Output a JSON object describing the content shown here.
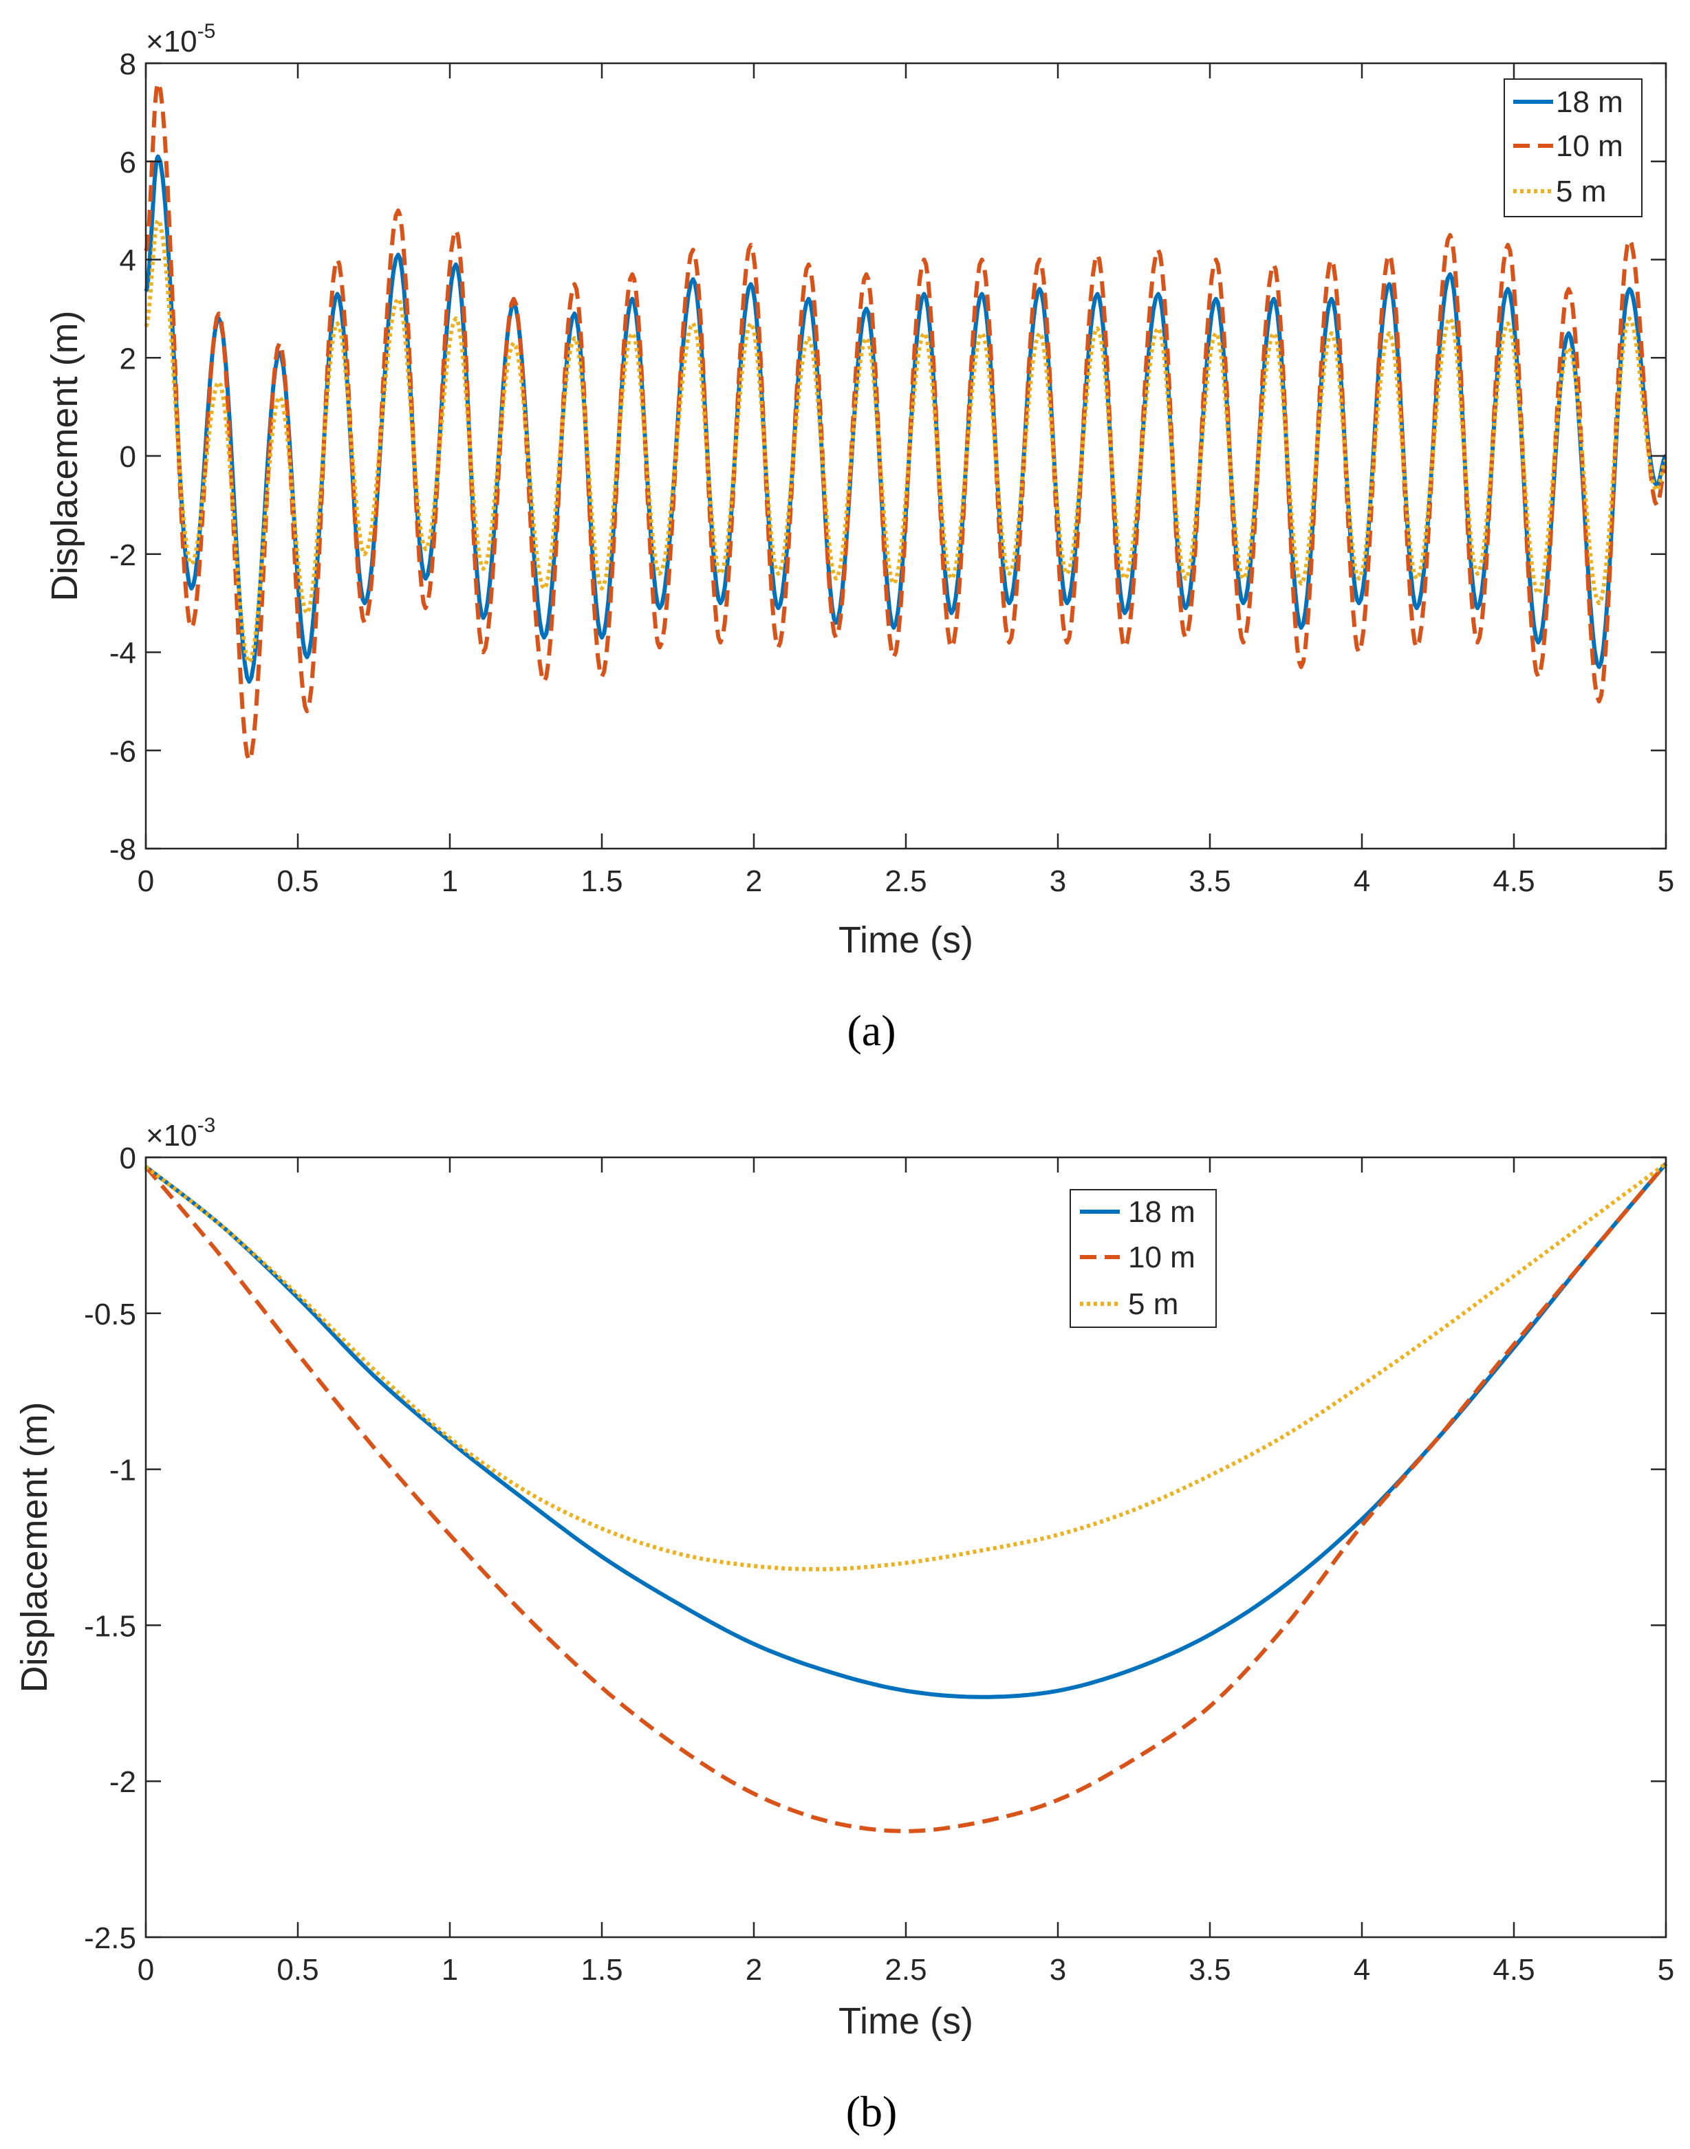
{
  "figure_labels": [
    "(a)",
    "(b)"
  ],
  "chart_data": [
    {
      "type": "line",
      "panel": "(a)",
      "xlabel": "Time (s)",
      "ylabel": "Displacement (m)",
      "y_exponent_label": "×10",
      "y_exponent_power": "-5",
      "xlim": [
        0,
        5
      ],
      "ylim": [
        -8,
        8
      ],
      "xticks": [
        "0",
        "0.5",
        "1",
        "1.5",
        "2",
        "2.5",
        "3",
        "3.5",
        "4",
        "4.5",
        "5"
      ],
      "yticks": [
        "-8",
        "-6",
        "-4",
        "-2",
        "0",
        "2",
        "4",
        "6",
        "8"
      ],
      "legend_position": "top-right",
      "series": [
        {
          "name": "18 m",
          "style": "solid",
          "color": "#0072BD",
          "peaks": [
            [
              0.04,
              6.1
            ],
            [
              0.15,
              -2.7
            ],
            [
              0.24,
              2.8
            ],
            [
              0.34,
              -4.6
            ],
            [
              0.44,
              2.1
            ],
            [
              0.53,
              -4.1
            ],
            [
              0.63,
              3.3
            ],
            [
              0.72,
              -3.0
            ],
            [
              0.83,
              4.1
            ],
            [
              0.92,
              -2.5
            ],
            [
              1.02,
              3.9
            ],
            [
              1.11,
              -3.3
            ],
            [
              1.21,
              3.1
            ],
            [
              1.31,
              -3.7
            ],
            [
              1.41,
              2.9
            ],
            [
              1.5,
              -3.7
            ],
            [
              1.6,
              3.2
            ],
            [
              1.69,
              -3.1
            ],
            [
              1.8,
              3.6
            ],
            [
              1.89,
              -3.0
            ],
            [
              1.99,
              3.5
            ],
            [
              2.08,
              -3.1
            ],
            [
              2.18,
              3.2
            ],
            [
              2.27,
              -3.4
            ],
            [
              2.37,
              3.0
            ],
            [
              2.46,
              -3.5
            ],
            [
              2.56,
              3.3
            ],
            [
              2.65,
              -3.2
            ],
            [
              2.75,
              3.3
            ],
            [
              2.84,
              -3.0
            ],
            [
              2.94,
              3.4
            ],
            [
              3.03,
              -3.0
            ],
            [
              3.13,
              3.3
            ],
            [
              3.22,
              -3.2
            ],
            [
              3.33,
              3.3
            ],
            [
              3.42,
              -3.1
            ],
            [
              3.52,
              3.2
            ],
            [
              3.61,
              -3.0
            ],
            [
              3.71,
              3.2
            ],
            [
              3.8,
              -3.5
            ],
            [
              3.9,
              3.2
            ],
            [
              3.99,
              -3.0
            ],
            [
              4.09,
              3.5
            ],
            [
              4.18,
              -3.1
            ],
            [
              4.29,
              3.7
            ],
            [
              4.38,
              -3.1
            ],
            [
              4.48,
              3.4
            ],
            [
              4.58,
              -3.8
            ],
            [
              4.68,
              2.5
            ],
            [
              4.78,
              -4.3
            ],
            [
              4.88,
              3.4
            ],
            [
              4.97,
              -0.6
            ],
            [
              5.0,
              0.0
            ]
          ]
        },
        {
          "name": "10 m",
          "style": "dashed",
          "color": "#D95319",
          "peaks": [
            [
              0.04,
              7.6
            ],
            [
              0.15,
              -3.5
            ],
            [
              0.24,
              2.9
            ],
            [
              0.34,
              -6.2
            ],
            [
              0.44,
              2.3
            ],
            [
              0.53,
              -5.2
            ],
            [
              0.63,
              4.0
            ],
            [
              0.72,
              -3.4
            ],
            [
              0.83,
              5.0
            ],
            [
              0.92,
              -3.1
            ],
            [
              1.02,
              4.6
            ],
            [
              1.11,
              -4.0
            ],
            [
              1.21,
              3.2
            ],
            [
              1.31,
              -4.6
            ],
            [
              1.41,
              3.5
            ],
            [
              1.5,
              -4.5
            ],
            [
              1.6,
              3.7
            ],
            [
              1.69,
              -3.9
            ],
            [
              1.8,
              4.2
            ],
            [
              1.89,
              -3.8
            ],
            [
              1.99,
              4.3
            ],
            [
              2.08,
              -3.9
            ],
            [
              2.18,
              3.9
            ],
            [
              2.27,
              -3.7
            ],
            [
              2.37,
              3.7
            ],
            [
              2.46,
              -4.1
            ],
            [
              2.56,
              4.0
            ],
            [
              2.65,
              -3.9
            ],
            [
              2.75,
              4.0
            ],
            [
              2.84,
              -3.8
            ],
            [
              2.94,
              4.0
            ],
            [
              3.03,
              -3.8
            ],
            [
              3.13,
              4.1
            ],
            [
              3.22,
              -3.9
            ],
            [
              3.33,
              4.2
            ],
            [
              3.42,
              -3.7
            ],
            [
              3.52,
              4.0
            ],
            [
              3.61,
              -3.8
            ],
            [
              3.71,
              3.9
            ],
            [
              3.8,
              -4.3
            ],
            [
              3.9,
              4.0
            ],
            [
              3.99,
              -4.0
            ],
            [
              4.09,
              4.1
            ],
            [
              4.18,
              -3.9
            ],
            [
              4.29,
              4.5
            ],
            [
              4.38,
              -3.8
            ],
            [
              4.48,
              4.3
            ],
            [
              4.58,
              -4.5
            ],
            [
              4.68,
              3.4
            ],
            [
              4.78,
              -5.0
            ],
            [
              4.88,
              4.4
            ],
            [
              4.97,
              -1.0
            ],
            [
              5.0,
              -0.2
            ]
          ]
        },
        {
          "name": "5 m",
          "style": "dotted",
          "color": "#EDB120",
          "peaks": [
            [
              0.04,
              4.8
            ],
            [
              0.15,
              -2.2
            ],
            [
              0.24,
              1.5
            ],
            [
              0.34,
              -4.2
            ],
            [
              0.44,
              1.2
            ],
            [
              0.53,
              -3.2
            ],
            [
              0.63,
              2.7
            ],
            [
              0.72,
              -2.0
            ],
            [
              0.83,
              3.2
            ],
            [
              0.92,
              -1.9
            ],
            [
              1.02,
              2.8
            ],
            [
              1.11,
              -2.3
            ],
            [
              1.21,
              2.3
            ],
            [
              1.31,
              -2.7
            ],
            [
              1.41,
              2.4
            ],
            [
              1.5,
              -2.7
            ],
            [
              1.6,
              2.5
            ],
            [
              1.69,
              -2.4
            ],
            [
              1.8,
              2.7
            ],
            [
              1.89,
              -2.4
            ],
            [
              1.99,
              2.7
            ],
            [
              2.08,
              -2.4
            ],
            [
              2.18,
              2.4
            ],
            [
              2.27,
              -2.5
            ],
            [
              2.37,
              2.4
            ],
            [
              2.46,
              -2.6
            ],
            [
              2.56,
              2.5
            ],
            [
              2.65,
              -2.5
            ],
            [
              2.75,
              2.5
            ],
            [
              2.84,
              -2.4
            ],
            [
              2.94,
              2.5
            ],
            [
              3.03,
              -2.4
            ],
            [
              3.13,
              2.6
            ],
            [
              3.22,
              -2.5
            ],
            [
              3.33,
              2.6
            ],
            [
              3.42,
              -2.5
            ],
            [
              3.52,
              2.5
            ],
            [
              3.61,
              -2.5
            ],
            [
              3.71,
              2.5
            ],
            [
              3.8,
              -2.6
            ],
            [
              3.9,
              2.5
            ],
            [
              3.99,
              -2.5
            ],
            [
              4.09,
              2.5
            ],
            [
              4.18,
              -2.5
            ],
            [
              4.29,
              2.8
            ],
            [
              4.38,
              -2.4
            ],
            [
              4.48,
              2.7
            ],
            [
              4.58,
              -2.8
            ],
            [
              4.68,
              2.2
            ],
            [
              4.78,
              -3.0
            ],
            [
              4.88,
              2.8
            ],
            [
              4.97,
              -0.7
            ],
            [
              5.0,
              -0.1
            ]
          ]
        }
      ]
    },
    {
      "type": "line",
      "panel": "(b)",
      "xlabel": "Time (s)",
      "ylabel": "Displacement (m)",
      "y_exponent_label": "×10",
      "y_exponent_power": "-3",
      "xlim": [
        0,
        5
      ],
      "ylim": [
        -2.5,
        0
      ],
      "xticks": [
        "0",
        "0.5",
        "1",
        "1.5",
        "2",
        "2.5",
        "3",
        "3.5",
        "4",
        "4.5",
        "5"
      ],
      "yticks": [
        "-2.5",
        "-2",
        "-1.5",
        "-1",
        "-0.5",
        "0"
      ],
      "legend_position": "top-center-right",
      "series": [
        {
          "name": "18 m",
          "style": "solid",
          "color": "#0072BD",
          "x": [
            0,
            0.25,
            0.5,
            0.75,
            1.0,
            1.25,
            1.5,
            1.75,
            2.0,
            2.25,
            2.5,
            2.75,
            3.0,
            3.25,
            3.5,
            3.75,
            4.0,
            4.25,
            4.5,
            4.75,
            5.0
          ],
          "y": [
            -0.03,
            -0.22,
            -0.45,
            -0.7,
            -0.91,
            -1.1,
            -1.28,
            -1.43,
            -1.56,
            -1.65,
            -1.71,
            -1.73,
            -1.71,
            -1.64,
            -1.53,
            -1.37,
            -1.16,
            -0.9,
            -0.61,
            -0.31,
            -0.02
          ]
        },
        {
          "name": "10 m",
          "style": "dashed",
          "color": "#D95319",
          "x": [
            0,
            0.25,
            0.5,
            0.75,
            1.0,
            1.25,
            1.5,
            1.75,
            2.0,
            2.25,
            2.5,
            2.75,
            3.0,
            3.25,
            3.5,
            3.75,
            4.0,
            4.25,
            4.5,
            4.75,
            5.0
          ],
          "y": [
            -0.03,
            -0.32,
            -0.63,
            -0.93,
            -1.21,
            -1.47,
            -1.7,
            -1.89,
            -2.04,
            -2.13,
            -2.16,
            -2.13,
            -2.06,
            -1.93,
            -1.76,
            -1.5,
            -1.18,
            -0.9,
            -0.6,
            -0.31,
            -0.02
          ]
        },
        {
          "name": "5 m",
          "style": "dotted",
          "color": "#EDB120",
          "x": [
            0,
            0.25,
            0.5,
            0.75,
            1.0,
            1.25,
            1.5,
            1.75,
            2.0,
            2.25,
            2.5,
            2.75,
            3.0,
            3.25,
            3.5,
            3.75,
            4.0,
            4.25,
            4.5,
            4.75,
            5.0
          ],
          "y": [
            -0.03,
            -0.22,
            -0.44,
            -0.68,
            -0.9,
            -1.07,
            -1.19,
            -1.27,
            -1.31,
            -1.32,
            -1.3,
            -1.26,
            -1.21,
            -1.13,
            -1.02,
            -0.89,
            -0.73,
            -0.56,
            -0.38,
            -0.2,
            -0.02
          ]
        }
      ]
    }
  ]
}
